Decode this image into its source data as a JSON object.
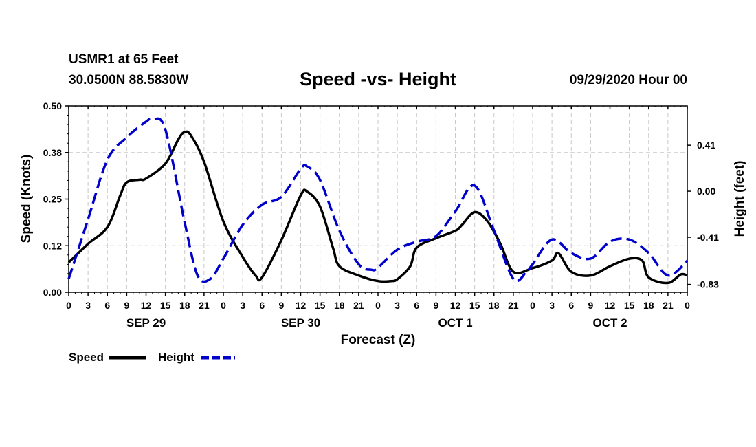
{
  "header": {
    "station": "USMR1 at 65 Feet",
    "coords": "30.0500N 88.5830W",
    "title": "Speed -vs- Height",
    "run": "09/29/2020 Hour 00"
  },
  "legend": {
    "speed_label": "Speed",
    "height_label": "Height"
  },
  "colors": {
    "speed": "#000000",
    "height": "#0000cc",
    "grid": "#c8c8c8"
  },
  "chart_data": {
    "type": "line",
    "title": "Speed -vs- Height",
    "xlabel": "Forecast (Z)",
    "ylabel": "Speed (Knots)",
    "y2label": "Height (feet)",
    "x_range": [
      0,
      96
    ],
    "ylim": [
      0,
      0.5
    ],
    "y2lim": [
      -0.9,
      0.76
    ],
    "y_ticks": [
      0,
      0.125,
      0.25,
      0.375,
      0.5
    ],
    "y_tick_labels": [
      "0.00",
      "0.12",
      "0.25",
      "0.38",
      "0.50"
    ],
    "y2_ticks": [
      -0.83,
      -0.41,
      0.0,
      0.41
    ],
    "y2_tick_labels": [
      "-0.83",
      "-0.41",
      "0.00",
      "0.41"
    ],
    "x_ticks": [
      0,
      3,
      6,
      9,
      12,
      15,
      18,
      21,
      24,
      27,
      30,
      33,
      36,
      39,
      42,
      45,
      48,
      51,
      54,
      57,
      60,
      63,
      66,
      69,
      72,
      75,
      78,
      81,
      84,
      87,
      90,
      93,
      96
    ],
    "x_tick_labels": [
      "0",
      "3",
      "6",
      "9",
      "12",
      "15",
      "18",
      "21",
      "0",
      "3",
      "6",
      "9",
      "12",
      "15",
      "18",
      "21",
      "0",
      "3",
      "6",
      "9",
      "12",
      "15",
      "18",
      "21",
      "0",
      "3",
      "6",
      "9",
      "12",
      "15",
      "18",
      "21",
      "0"
    ],
    "day_labels": [
      {
        "label": "SEP 29",
        "hour": 12
      },
      {
        "label": "SEP 30",
        "hour": 36
      },
      {
        "label": "OCT 1",
        "hour": 60
      },
      {
        "label": "OCT 2",
        "hour": 84
      }
    ],
    "series": [
      {
        "name": "Speed",
        "axis": "left",
        "style": "solid",
        "x": [
          0,
          3,
          6,
          8,
          9,
          11,
          12,
          15,
          17,
          18,
          19,
          21,
          24,
          27,
          29,
          30,
          33,
          36,
          37,
          39,
          41,
          42,
          45,
          48,
          50,
          51,
          53,
          54,
          57,
          60,
          61,
          63,
          65,
          67,
          69,
          72,
          75,
          76,
          78,
          81,
          84,
          87,
          89,
          90,
          93,
          95,
          96
        ],
        "values": [
          0.08,
          0.13,
          0.175,
          0.26,
          0.295,
          0.302,
          0.305,
          0.345,
          0.41,
          0.43,
          0.42,
          0.35,
          0.19,
          0.095,
          0.045,
          0.04,
          0.14,
          0.26,
          0.27,
          0.23,
          0.12,
          0.07,
          0.045,
          0.03,
          0.03,
          0.035,
          0.07,
          0.12,
          0.145,
          0.165,
          0.18,
          0.215,
          0.19,
          0.13,
          0.055,
          0.065,
          0.085,
          0.105,
          0.055,
          0.045,
          0.07,
          0.09,
          0.085,
          0.04,
          0.025,
          0.048,
          0.045
        ]
      },
      {
        "name": "Height",
        "axis": "right",
        "style": "dashed",
        "x": [
          0,
          3,
          6,
          9,
          12,
          13,
          15,
          18,
          20,
          22,
          24,
          27,
          30,
          33,
          36,
          37,
          39,
          42,
          45,
          47,
          48,
          51,
          54,
          57,
          60,
          63,
          66,
          69,
          71,
          72,
          75,
          78,
          81,
          84,
          87,
          90,
          93,
          96
        ],
        "values": [
          -0.78,
          -0.25,
          0.28,
          0.48,
          0.62,
          0.64,
          0.55,
          -0.28,
          -0.75,
          -0.78,
          -0.6,
          -0.3,
          -0.12,
          -0.05,
          0.2,
          0.22,
          0.1,
          -0.35,
          -0.65,
          -0.7,
          -0.68,
          -0.52,
          -0.45,
          -0.4,
          -0.18,
          0.05,
          -0.35,
          -0.78,
          -0.72,
          -0.65,
          -0.43,
          -0.55,
          -0.6,
          -0.45,
          -0.43,
          -0.55,
          -0.75,
          -0.62
        ]
      }
    ]
  }
}
